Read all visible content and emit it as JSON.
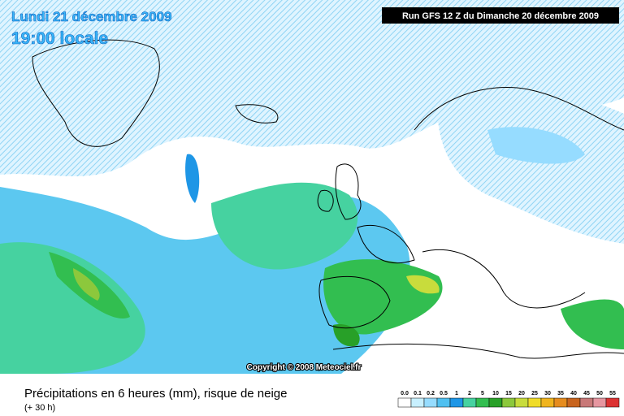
{
  "header": {
    "date": "Lundi 21 décembre 2009",
    "time": "19:00 locale",
    "run": "Run GFS 12 Z du Dimanche 20 décembre 2009"
  },
  "copyright": "Copyright © 2008 Meteociel.fr",
  "footer": {
    "title": "Précipitations en 6 heures (mm), risque de neige",
    "lead": "(+ 30 h)"
  },
  "legend": {
    "items": [
      {
        "label": "0.0",
        "color": "#ffffff"
      },
      {
        "label": "0.1",
        "color": "#c8f0ff"
      },
      {
        "label": "0.2",
        "color": "#96dcff"
      },
      {
        "label": "0.5",
        "color": "#50c0f0"
      },
      {
        "label": "1",
        "color": "#1e96e6"
      },
      {
        "label": "2",
        "color": "#46d2a0"
      },
      {
        "label": "5",
        "color": "#32be50"
      },
      {
        "label": "10",
        "color": "#28a028"
      },
      {
        "label": "15",
        "color": "#8cc83c"
      },
      {
        "label": "20",
        "color": "#c8dc3c"
      },
      {
        "label": "25",
        "color": "#f0dc28"
      },
      {
        "label": "30",
        "color": "#f0b41e"
      },
      {
        "label": "35",
        "color": "#e68c1e"
      },
      {
        "label": "40",
        "color": "#c8641e"
      },
      {
        "label": "45",
        "color": "#c87878"
      },
      {
        "label": "50",
        "color": "#e696a0"
      },
      {
        "label": "55",
        "color": "#dc3232"
      }
    ]
  }
}
